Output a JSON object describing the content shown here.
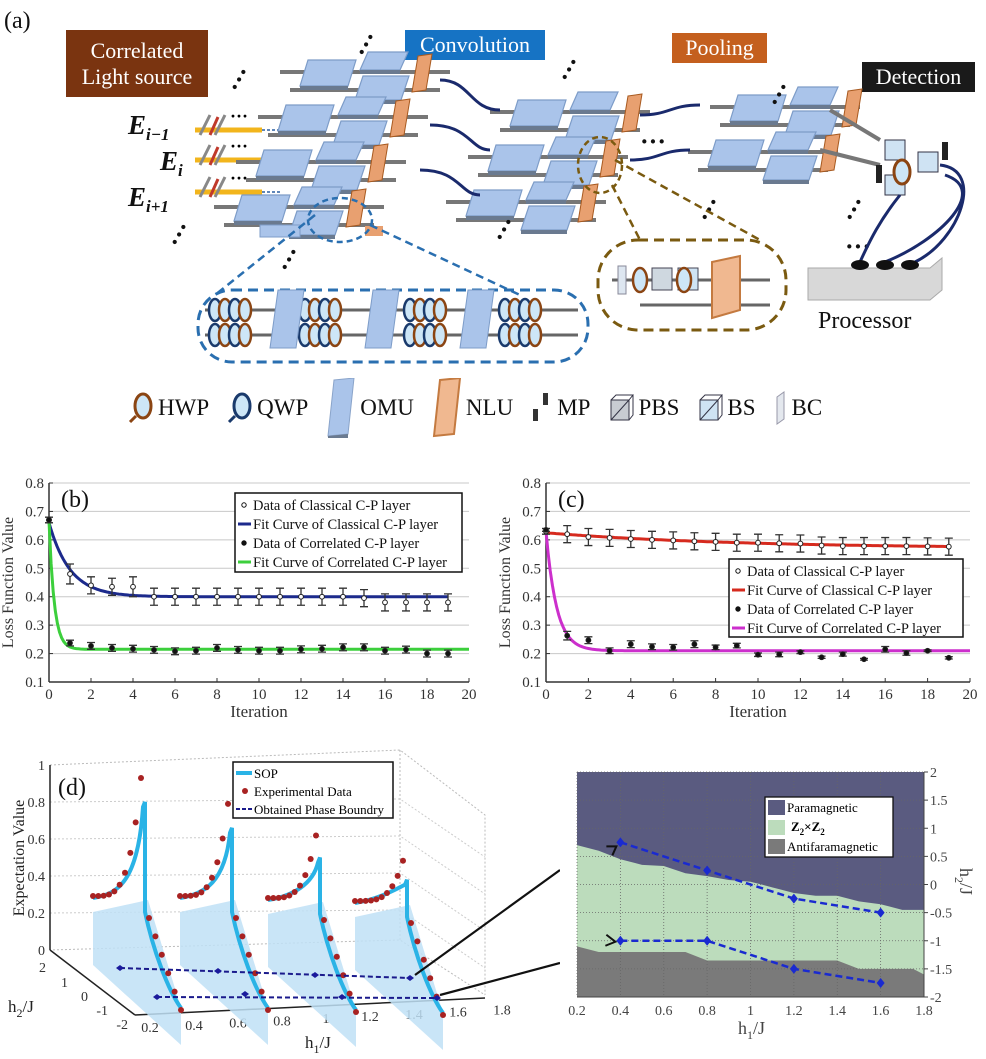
{
  "panel_a": {
    "label": "(a)",
    "source_label": "Correlated Light source",
    "convolution_label": "Convolution",
    "pooling_label": "Pooling",
    "detection_label": "Detection",
    "processor_label": "Processor",
    "fields": [
      {
        "base": "E",
        "sub": "i−1"
      },
      {
        "base": "E",
        "sub": "i"
      },
      {
        "base": "E",
        "sub": "i+1"
      }
    ],
    "legend": [
      {
        "icon": "hwp-icon",
        "label": "HWP"
      },
      {
        "icon": "qwp-icon",
        "label": "QWP"
      },
      {
        "icon": "omu-icon",
        "label": "OMU"
      },
      {
        "icon": "nlu-icon",
        "label": "NLU"
      },
      {
        "icon": "mp-icon",
        "label": "MP"
      },
      {
        "icon": "pbs-icon",
        "label": "PBS"
      },
      {
        "icon": "bs-icon",
        "label": "BS"
      },
      {
        "icon": "bc-icon",
        "label": "BC"
      }
    ],
    "colors": {
      "source": "#7a3410",
      "convolution": "#1673c4",
      "pooling": "#c45f1e",
      "detection": "#1a1a1a",
      "omu": "#aac4ea",
      "nlu": "#e8a070"
    }
  },
  "chart_data": [
    {
      "id": "b",
      "type": "scatter",
      "panel_label": "(b)",
      "xlabel": "Iteration",
      "ylabel": "Loss Function Value",
      "xlim": [
        0,
        20
      ],
      "ylim": [
        0.1,
        0.8
      ],
      "xticks": [
        "0",
        "2",
        "4",
        "6",
        "8",
        "10",
        "12",
        "14",
        "16",
        "18",
        "20"
      ],
      "yticks": [
        "0.1",
        "0.2",
        "0.3",
        "0.4",
        "0.5",
        "0.6",
        "0.7",
        "0.8"
      ],
      "grid": true,
      "legend_position": "top-right",
      "series": [
        {
          "name": "Data of Classical C-P layer",
          "kind": "points-open",
          "color": "#222222",
          "x": [
            0,
            1,
            2,
            3,
            4,
            5,
            6,
            7,
            8,
            9,
            10,
            11,
            12,
            13,
            14,
            15,
            16,
            17,
            18,
            19
          ],
          "y": [
            0.67,
            0.48,
            0.44,
            0.435,
            0.435,
            0.4,
            0.4,
            0.4,
            0.4,
            0.4,
            0.4,
            0.4,
            0.4,
            0.4,
            0.4,
            0.395,
            0.38,
            0.38,
            0.38,
            0.38
          ],
          "err": [
            0.01,
            0.035,
            0.03,
            0.03,
            0.035,
            0.03,
            0.03,
            0.03,
            0.03,
            0.03,
            0.03,
            0.03,
            0.03,
            0.03,
            0.03,
            0.03,
            0.03,
            0.03,
            0.03,
            0.03
          ]
        },
        {
          "name": "Fit Curve of Classical C-P layer",
          "kind": "fit",
          "color": "#1c2a8c",
          "model": {
            "a": 0.4,
            "b": 0.26,
            "tau": 1.0
          },
          "xrange": [
            0,
            19
          ]
        },
        {
          "name": "Data of Correlated C-P layer",
          "kind": "points-filled",
          "color": "#111111",
          "x": [
            0,
            1,
            2,
            3,
            4,
            5,
            6,
            7,
            8,
            9,
            10,
            11,
            12,
            13,
            14,
            15,
            16,
            17,
            18,
            19
          ],
          "y": [
            0.67,
            0.237,
            0.227,
            0.22,
            0.217,
            0.213,
            0.208,
            0.21,
            0.22,
            0.213,
            0.21,
            0.21,
            0.215,
            0.217,
            0.222,
            0.222,
            0.21,
            0.214,
            0.2,
            0.2
          ],
          "err": [
            0.01,
            0.01,
            0.012,
            0.012,
            0.012,
            0.012,
            0.012,
            0.012,
            0.012,
            0.012,
            0.012,
            0.012,
            0.012,
            0.012,
            0.012,
            0.012,
            0.012,
            0.012,
            0.012,
            0.012
          ]
        },
        {
          "name": "Fit Curve of Correlated C-P layer",
          "kind": "fit",
          "color": "#3ccf3c",
          "model": {
            "a": 0.215,
            "b": 0.45,
            "tau": 0.25
          },
          "xrange": [
            0,
            20
          ]
        }
      ]
    },
    {
      "id": "c",
      "type": "scatter",
      "panel_label": "(c)",
      "xlabel": "Iteration",
      "ylabel": "Loss Function Value",
      "xlim": [
        0,
        20
      ],
      "ylim": [
        0.1,
        0.8
      ],
      "xticks": [
        "0",
        "2",
        "4",
        "6",
        "8",
        "10",
        "12",
        "14",
        "16",
        "18",
        "20"
      ],
      "yticks": [
        "0.1",
        "0.2",
        "0.3",
        "0.4",
        "0.5",
        "0.6",
        "0.7",
        "0.8"
      ],
      "grid": true,
      "legend_position": "center-right",
      "series": [
        {
          "name": "Data of Classical C-P layer",
          "kind": "points-open",
          "color": "#222222",
          "x": [
            0,
            1,
            2,
            3,
            4,
            5,
            6,
            7,
            8,
            9,
            10,
            11,
            12,
            13,
            14,
            15,
            16,
            17,
            18,
            19
          ],
          "y": [
            0.63,
            0.62,
            0.61,
            0.607,
            0.603,
            0.6,
            0.598,
            0.595,
            0.593,
            0.59,
            0.59,
            0.588,
            0.587,
            0.58,
            0.578,
            0.578,
            0.578,
            0.578,
            0.577,
            0.576
          ],
          "err": [
            0.01,
            0.03,
            0.03,
            0.03,
            0.03,
            0.03,
            0.03,
            0.03,
            0.03,
            0.03,
            0.03,
            0.03,
            0.03,
            0.03,
            0.03,
            0.03,
            0.03,
            0.03,
            0.03,
            0.03
          ]
        },
        {
          "name": "Fit Curve of Classical C-P layer",
          "kind": "fit",
          "color": "#d62a1e",
          "model": {
            "a": 0.57,
            "b": 0.055,
            "tau": 9.0
          },
          "xrange": [
            0,
            19
          ]
        },
        {
          "name": "Data of Correlated C-P layer",
          "kind": "points-filled",
          "color": "#111111",
          "x": [
            0,
            1,
            2,
            3,
            4,
            5,
            6,
            7,
            8,
            9,
            10,
            11,
            12,
            13,
            14,
            15,
            16,
            17,
            18,
            19
          ],
          "y": [
            0.635,
            0.263,
            0.247,
            0.21,
            0.233,
            0.224,
            0.222,
            0.233,
            0.222,
            0.228,
            0.196,
            0.197,
            0.205,
            0.187,
            0.198,
            0.18,
            0.215,
            0.202,
            0.21,
            0.185
          ],
          "err": [
            0.005,
            0.015,
            0.012,
            0.01,
            0.012,
            0.01,
            0.01,
            0.012,
            0.008,
            0.008,
            0.006,
            0.008,
            0.005,
            0.004,
            0.007,
            0.003,
            0.01,
            0.008,
            0.003,
            0.004
          ]
        },
        {
          "name": "Fit Curve of Correlated C-P layer",
          "kind": "fit",
          "color": "#cc2fcc",
          "model": {
            "a": 0.21,
            "b": 0.42,
            "tau": 0.5
          },
          "xrange": [
            0,
            20
          ]
        }
      ]
    },
    {
      "id": "d-left",
      "type": "line",
      "panel_label": "(d)",
      "zlabel": "Expectation Value",
      "xlabel_base": "h",
      "xlabel_sub": "1",
      "xlabel_tail": "/J",
      "ylabel_base": "h",
      "ylabel_sub": "2",
      "ylabel_tail": "/J",
      "zticks": [
        "0",
        "0.2",
        "0.4",
        "0.6",
        "0.8",
        "1"
      ],
      "xticks": [
        "0.2",
        "0.4",
        "0.6",
        "0.8",
        "1",
        "1.2",
        "1.4",
        "1.6",
        "1.8"
      ],
      "yticks": [
        "2",
        "1",
        "0",
        "-1",
        "-2"
      ],
      "legend": [
        {
          "name": "SOP",
          "color": "#2ab3e6"
        },
        {
          "name": "Experimental Data",
          "color": "#a82222"
        },
        {
          "name": "Obtained Phase Boundry",
          "color": "#1a1a8c"
        }
      ],
      "slices_h1": [
        0.4,
        0.8,
        1.2,
        1.6
      ],
      "peak_values": [
        0.8,
        0.66,
        0.5,
        0.38
      ]
    },
    {
      "id": "d-right",
      "type": "area",
      "xlabel_base": "h",
      "xlabel_sub": "1",
      "xlabel_tail": "/J",
      "ylabel_base": "h",
      "ylabel_sub": "2",
      "ylabel_tail": "/J",
      "xlim": [
        0.2,
        1.8
      ],
      "ylim": [
        -2,
        2
      ],
      "xticks": [
        "0.2",
        "0.4",
        "0.6",
        "0.8",
        "1",
        "1.2",
        "1.4",
        "1.6",
        "1.8"
      ],
      "yticks": [
        "2",
        "1.5",
        "1",
        "0.5",
        "0",
        "-0.5",
        "-1",
        "-1.5",
        "-2"
      ],
      "regions": [
        {
          "name": "Paramagnetic",
          "color": "#5a5b80"
        },
        {
          "name_base": "Z",
          "name_sub": "2",
          "name_mid": "×",
          "name": "Z2×Z2",
          "color": "#bcdcbc"
        },
        {
          "name": "Antifaramagnetic",
          "color": "#7a7a7a"
        }
      ],
      "upper_boundary": {
        "x": [
          0.2,
          0.3,
          0.4,
          0.5,
          0.6,
          0.7,
          0.8,
          0.9,
          1.0,
          1.1,
          1.2,
          1.3,
          1.4,
          1.5,
          1.6,
          1.7,
          1.8
        ],
        "y": [
          0.7,
          0.6,
          0.45,
          0.35,
          0.33,
          0.2,
          0.15,
          0.08,
          0.05,
          -0.05,
          -0.15,
          -0.2,
          -0.2,
          -0.3,
          -0.35,
          -0.45,
          -0.45
        ]
      },
      "lower_boundary": {
        "x": [
          0.2,
          0.3,
          0.7,
          0.8,
          1.4,
          1.5,
          1.75,
          1.8
        ],
        "y": [
          -1.1,
          -1.2,
          -1.2,
          -1.35,
          -1.35,
          -1.5,
          -1.5,
          -1.6
        ]
      },
      "phase_boundaries": [
        {
          "x": [
            0.4,
            0.8,
            1.2,
            1.6
          ],
          "y": [
            0.75,
            0.25,
            -0.25,
            -0.5
          ]
        },
        {
          "x": [
            0.4,
            0.8,
            1.2,
            1.6
          ],
          "y": [
            -1,
            -1,
            -1.5,
            -1.75
          ]
        }
      ]
    }
  ]
}
